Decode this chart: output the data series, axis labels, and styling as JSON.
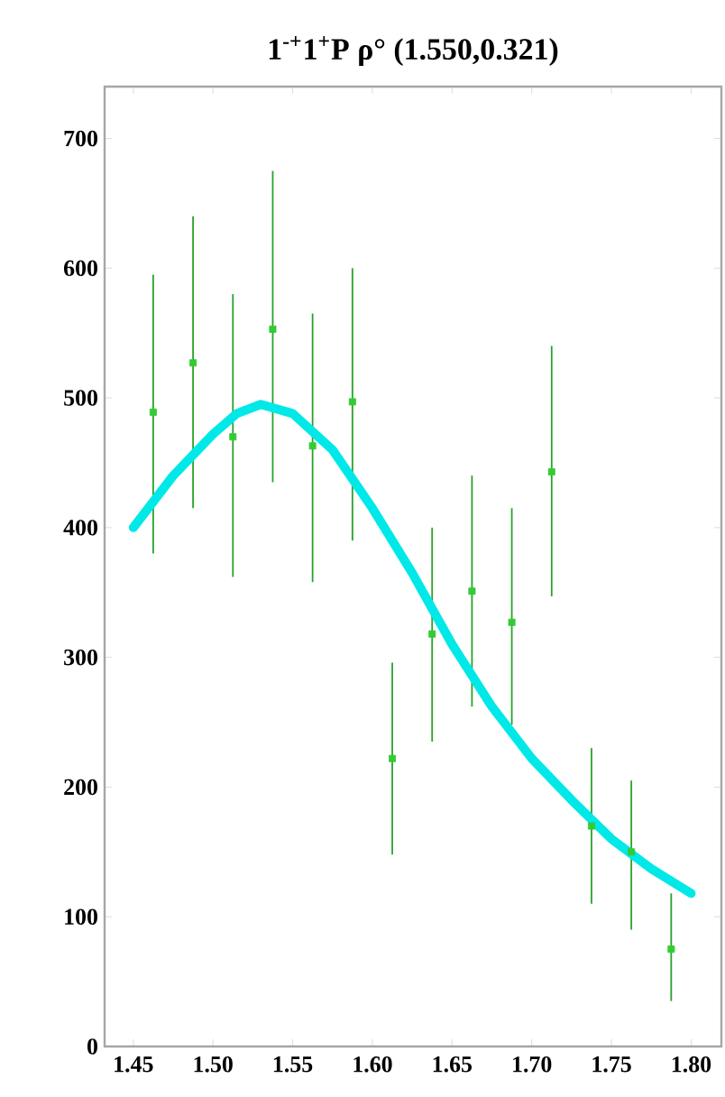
{
  "chart_data": {
    "type": "scatter",
    "title": "1$^{-+}$1$^{+}$P ρ° (1.550,0.321)",
    "xlim": [
      1.432,
      1.819
    ],
    "xticks": [
      {
        "value": 1.45,
        "label": "1.45"
      },
      {
        "value": 1.5,
        "label": "1.50"
      },
      {
        "value": 1.55,
        "label": "1.55"
      },
      {
        "value": 1.6,
        "label": "1.60"
      },
      {
        "value": 1.65,
        "label": "1.65"
      },
      {
        "value": 1.7,
        "label": "1.70"
      },
      {
        "value": 1.75,
        "label": "1.75"
      },
      {
        "value": 1.8,
        "label": "1.80"
      }
    ],
    "ylim": [
      0,
      740
    ],
    "yticks": [
      0,
      100,
      200,
      300,
      400,
      500,
      600,
      700
    ],
    "grid": false,
    "series": [
      {
        "color": "#33cc33",
        "marker": "square",
        "x": [
          1.4625,
          1.4875,
          1.5125,
          1.5375,
          1.5625,
          1.5875,
          1.6125,
          1.6375,
          1.6625,
          1.6875,
          1.7125,
          1.7375,
          1.7625,
          1.7875
        ],
        "values": [
          489,
          527,
          470,
          553,
          463,
          497,
          222,
          318,
          351,
          327,
          443,
          170,
          150,
          75
        ],
        "errors": [
          [
            380,
            595
          ],
          [
            415,
            640
          ],
          [
            362,
            580
          ],
          [
            435,
            675
          ],
          [
            358,
            565
          ],
          [
            390,
            600
          ],
          [
            148,
            296
          ],
          [
            235,
            400
          ],
          [
            262,
            440
          ],
          [
            248,
            415
          ],
          [
            347,
            540
          ],
          [
            110,
            230
          ],
          [
            90,
            205
          ],
          [
            35,
            118
          ]
        ]
      },
      {
        "type": "line",
        "color": "#00e8e8",
        "marker": "none",
        "line_style": "solid",
        "x": [
          1.45,
          1.475,
          1.5,
          1.515,
          1.53,
          1.55,
          1.575,
          1.6,
          1.625,
          1.65,
          1.675,
          1.7,
          1.725,
          1.75,
          1.775,
          1.8
        ],
        "values": [
          400,
          440,
          472,
          488,
          495,
          488,
          460,
          415,
          365,
          310,
          262,
          222,
          190,
          160,
          137,
          118
        ]
      }
    ]
  }
}
